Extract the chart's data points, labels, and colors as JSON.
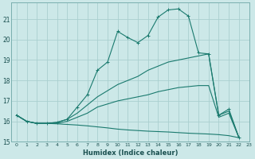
{
  "title": "",
  "xlabel": "Humidex (Indice chaleur)",
  "bg_color": "#cce8e8",
  "grid_color": "#aacfcf",
  "line_color": "#1a7a6e",
  "xlim": [
    -0.5,
    23
  ],
  "ylim": [
    15,
    21.8
  ],
  "yticks": [
    15,
    16,
    17,
    18,
    19,
    20,
    21
  ],
  "xticks": [
    0,
    1,
    2,
    3,
    4,
    5,
    6,
    7,
    8,
    9,
    10,
    11,
    12,
    13,
    14,
    15,
    16,
    17,
    18,
    19,
    20,
    21,
    22,
    23
  ],
  "line1_x": [
    0,
    1,
    2,
    3,
    4,
    5,
    6,
    7,
    8,
    9,
    10,
    11,
    12,
    13,
    14,
    15,
    16,
    17,
    18,
    19,
    20,
    21,
    22
  ],
  "line1_y": [
    16.3,
    16.0,
    15.9,
    15.9,
    15.95,
    16.1,
    16.7,
    17.3,
    18.5,
    18.9,
    20.4,
    20.1,
    19.85,
    20.2,
    21.1,
    21.45,
    21.5,
    21.15,
    19.35,
    19.3,
    16.3,
    16.6,
    15.2
  ],
  "line2_x": [
    0,
    1,
    2,
    3,
    4,
    5,
    6,
    7,
    8,
    9,
    10,
    11,
    12,
    13,
    14,
    15,
    16,
    17,
    18,
    19,
    20,
    21,
    22
  ],
  "line2_y": [
    16.3,
    16.0,
    15.9,
    15.9,
    15.95,
    16.1,
    16.4,
    16.8,
    17.2,
    17.5,
    17.8,
    18.0,
    18.2,
    18.5,
    18.7,
    18.9,
    19.0,
    19.1,
    19.2,
    19.3,
    16.3,
    16.5,
    15.2
  ],
  "line3_x": [
    0,
    1,
    2,
    3,
    4,
    5,
    6,
    7,
    8,
    9,
    10,
    11,
    12,
    13,
    14,
    15,
    16,
    17,
    18,
    19,
    20,
    21,
    22
  ],
  "line3_y": [
    16.3,
    16.0,
    15.9,
    15.9,
    15.9,
    16.0,
    16.2,
    16.4,
    16.7,
    16.85,
    17.0,
    17.1,
    17.2,
    17.3,
    17.45,
    17.55,
    17.65,
    17.7,
    17.75,
    17.75,
    16.2,
    16.4,
    15.2
  ],
  "line4_x": [
    0,
    1,
    2,
    3,
    4,
    5,
    6,
    7,
    8,
    9,
    10,
    11,
    12,
    13,
    14,
    15,
    16,
    17,
    18,
    19,
    20,
    21,
    22
  ],
  "line4_y": [
    16.3,
    16.0,
    15.9,
    15.9,
    15.88,
    15.85,
    15.82,
    15.78,
    15.73,
    15.68,
    15.62,
    15.58,
    15.55,
    15.52,
    15.5,
    15.48,
    15.45,
    15.42,
    15.4,
    15.38,
    15.35,
    15.3,
    15.2
  ]
}
